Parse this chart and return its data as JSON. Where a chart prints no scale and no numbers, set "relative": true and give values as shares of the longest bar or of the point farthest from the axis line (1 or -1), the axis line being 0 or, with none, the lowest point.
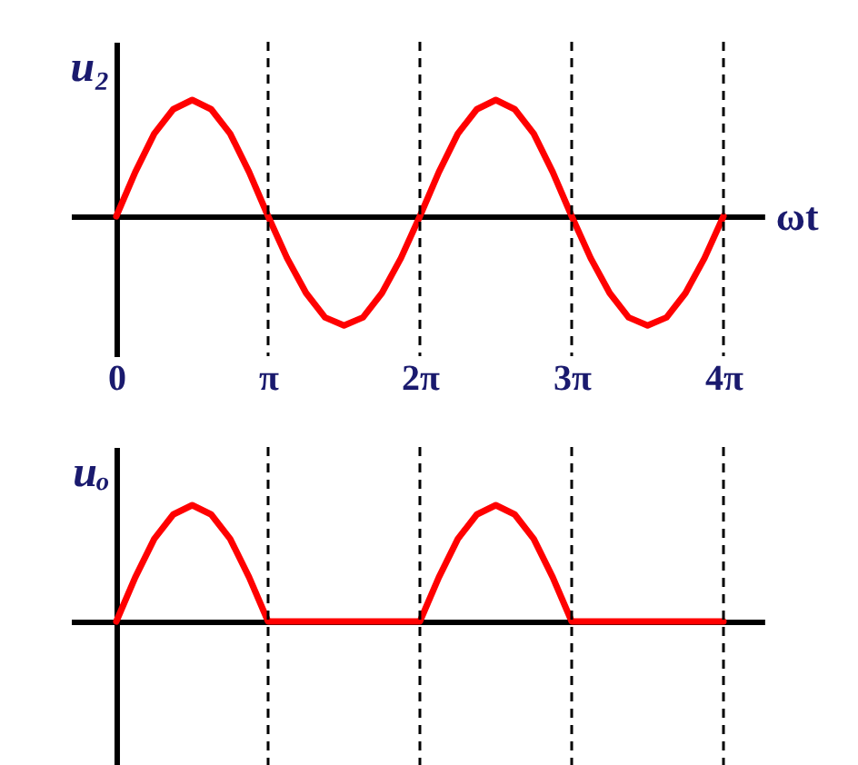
{
  "chart_data": [
    {
      "type": "line",
      "ylabel": "u₂",
      "xlabel": "ωt",
      "relative": true,
      "tick_labels": "x",
      "xlim": [
        -0.94,
        13.41
      ],
      "xticks": [
        {
          "value": 0,
          "label": "0"
        },
        {
          "value": 3.1416,
          "label": "π"
        },
        {
          "value": 6.2832,
          "label": "2π"
        },
        {
          "value": 9.4248,
          "label": "3π"
        },
        {
          "value": 12.5664,
          "label": "4π"
        }
      ],
      "x": [
        0,
        0.3927,
        0.7854,
        1.1781,
        1.5708,
        1.9635,
        2.3562,
        2.7489,
        3.1416,
        3.5343,
        3.927,
        4.3197,
        4.7124,
        5.1051,
        5.4978,
        5.8905,
        6.2832,
        6.6759,
        7.0686,
        7.4613,
        7.854,
        8.2467,
        8.6394,
        9.0321,
        9.4248,
        9.8175,
        10.2102,
        10.6029,
        10.9956,
        11.3883,
        11.781,
        12.1737,
        12.5664
      ],
      "series": [
        {
          "color": "#ff0000",
          "values": [
            0,
            0.38,
            0.71,
            0.92,
            1,
            0.92,
            0.71,
            0.38,
            0,
            -0.36,
            -0.66,
            -0.87,
            -0.94,
            -0.87,
            -0.66,
            -0.36,
            0,
            0.38,
            0.71,
            0.92,
            1,
            0.92,
            0.71,
            0.38,
            0,
            -0.36,
            -0.66,
            -0.87,
            -0.94,
            -0.87,
            -0.66,
            -0.36,
            0
          ]
        }
      ],
      "ref_lines": [
        {
          "axis": "x",
          "value": 3.1416,
          "color": "#000000",
          "line_style": "dashed"
        },
        {
          "axis": "x",
          "value": 6.2832,
          "color": "#000000",
          "line_style": "dashed"
        },
        {
          "axis": "x",
          "value": 9.4248,
          "color": "#000000",
          "line_style": "dashed"
        },
        {
          "axis": "x",
          "value": 12.5664,
          "color": "#000000",
          "line_style": "dashed"
        }
      ]
    },
    {
      "type": "line",
      "ylabel": "uₒ",
      "relative": true,
      "tick_labels": false,
      "xlim": [
        -0.94,
        13.41
      ],
      "x": [
        0,
        0.3927,
        0.7854,
        1.1781,
        1.5708,
        1.9635,
        2.3562,
        2.7489,
        3.1416,
        3.5343,
        3.927,
        4.3197,
        4.7124,
        5.1051,
        5.4978,
        5.8905,
        6.2832,
        6.6759,
        7.0686,
        7.4613,
        7.854,
        8.2467,
        8.6394,
        9.0321,
        9.4248,
        9.8175,
        10.2102,
        10.6029,
        10.9956,
        11.3883,
        11.781,
        12.1737,
        12.5664
      ],
      "series": [
        {
          "color": "#ff0000",
          "values": [
            0,
            0.38,
            0.71,
            0.92,
            1,
            0.92,
            0.71,
            0.38,
            0,
            0,
            0,
            0,
            0,
            0,
            0,
            0,
            0,
            0.38,
            0.71,
            0.92,
            1,
            0.92,
            0.71,
            0.38,
            0,
            0,
            0,
            0,
            0,
            0,
            0,
            0,
            0
          ]
        }
      ],
      "ref_lines": [
        {
          "axis": "x",
          "value": 3.1416,
          "color": "#000000",
          "line_style": "dashed"
        },
        {
          "axis": "x",
          "value": 6.2832,
          "color": "#000000",
          "line_style": "dashed"
        },
        {
          "axis": "x",
          "value": 9.4248,
          "color": "#000000",
          "line_style": "dashed"
        },
        {
          "axis": "x",
          "value": 12.5664,
          "color": "#000000",
          "line_style": "dashed"
        }
      ]
    }
  ]
}
